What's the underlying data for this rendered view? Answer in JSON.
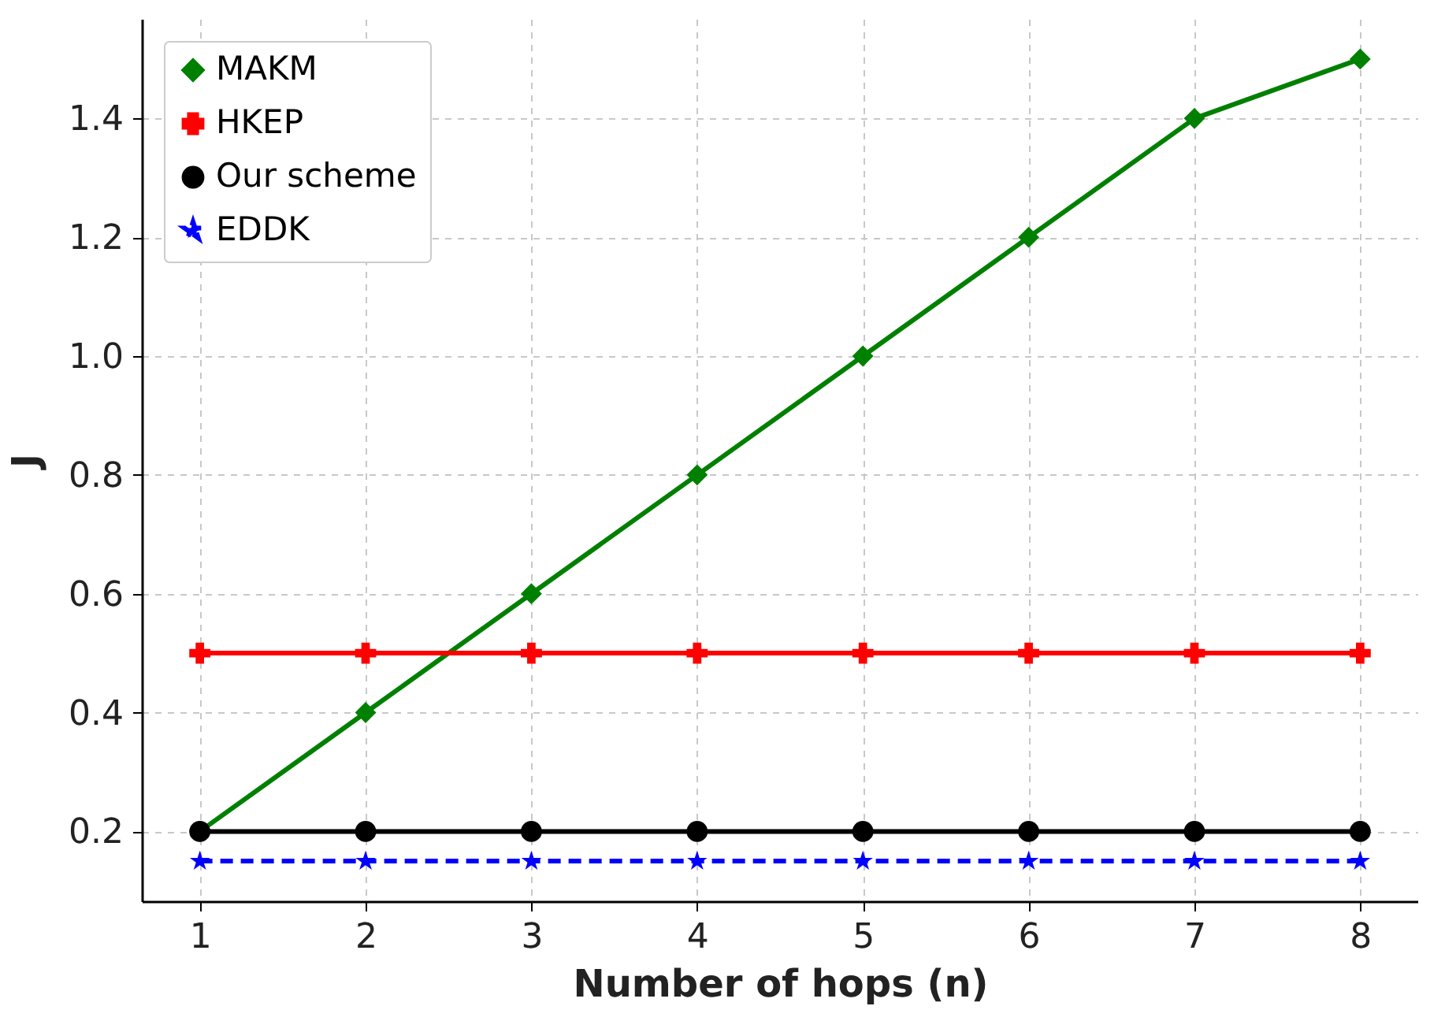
{
  "chart_data": {
    "type": "line",
    "xlabel": "Number of hops (n)",
    "ylabel": "J",
    "x": [
      1,
      2,
      3,
      4,
      5,
      6,
      7,
      8
    ],
    "series": [
      {
        "name": "MAKM",
        "color": "#008000",
        "marker": "diamond",
        "line_style": "solid",
        "values": [
          0.2,
          0.4,
          0.6,
          0.8,
          1.0,
          1.2,
          1.4,
          1.5
        ]
      },
      {
        "name": "HKEP",
        "color": "#ff0000",
        "marker": "cross",
        "line_style": "solid",
        "values": [
          0.5,
          0.5,
          0.5,
          0.5,
          0.5,
          0.5,
          0.5,
          0.5
        ]
      },
      {
        "name": "Our scheme",
        "color": "#000000",
        "marker": "circle",
        "line_style": "solid",
        "values": [
          0.2,
          0.2,
          0.2,
          0.2,
          0.2,
          0.2,
          0.2,
          0.2
        ]
      },
      {
        "name": "EDDK",
        "color": "#0000ff",
        "marker": "star",
        "line_style": "dashed",
        "values": [
          0.15,
          0.15,
          0.15,
          0.15,
          0.15,
          0.15,
          0.15,
          0.15
        ]
      }
    ],
    "xlim": [
      0.65,
      8.35
    ],
    "xticks": [
      1,
      2,
      3,
      4,
      5,
      6,
      7,
      8
    ],
    "ylim": [
      0.0825,
      1.5675
    ],
    "yticks": [
      0.2,
      0.4,
      0.6,
      0.8,
      {
        "value": 1.0,
        "label": "1.0"
      },
      1.2,
      1.4
    ],
    "grid": true,
    "legend": "top left"
  }
}
